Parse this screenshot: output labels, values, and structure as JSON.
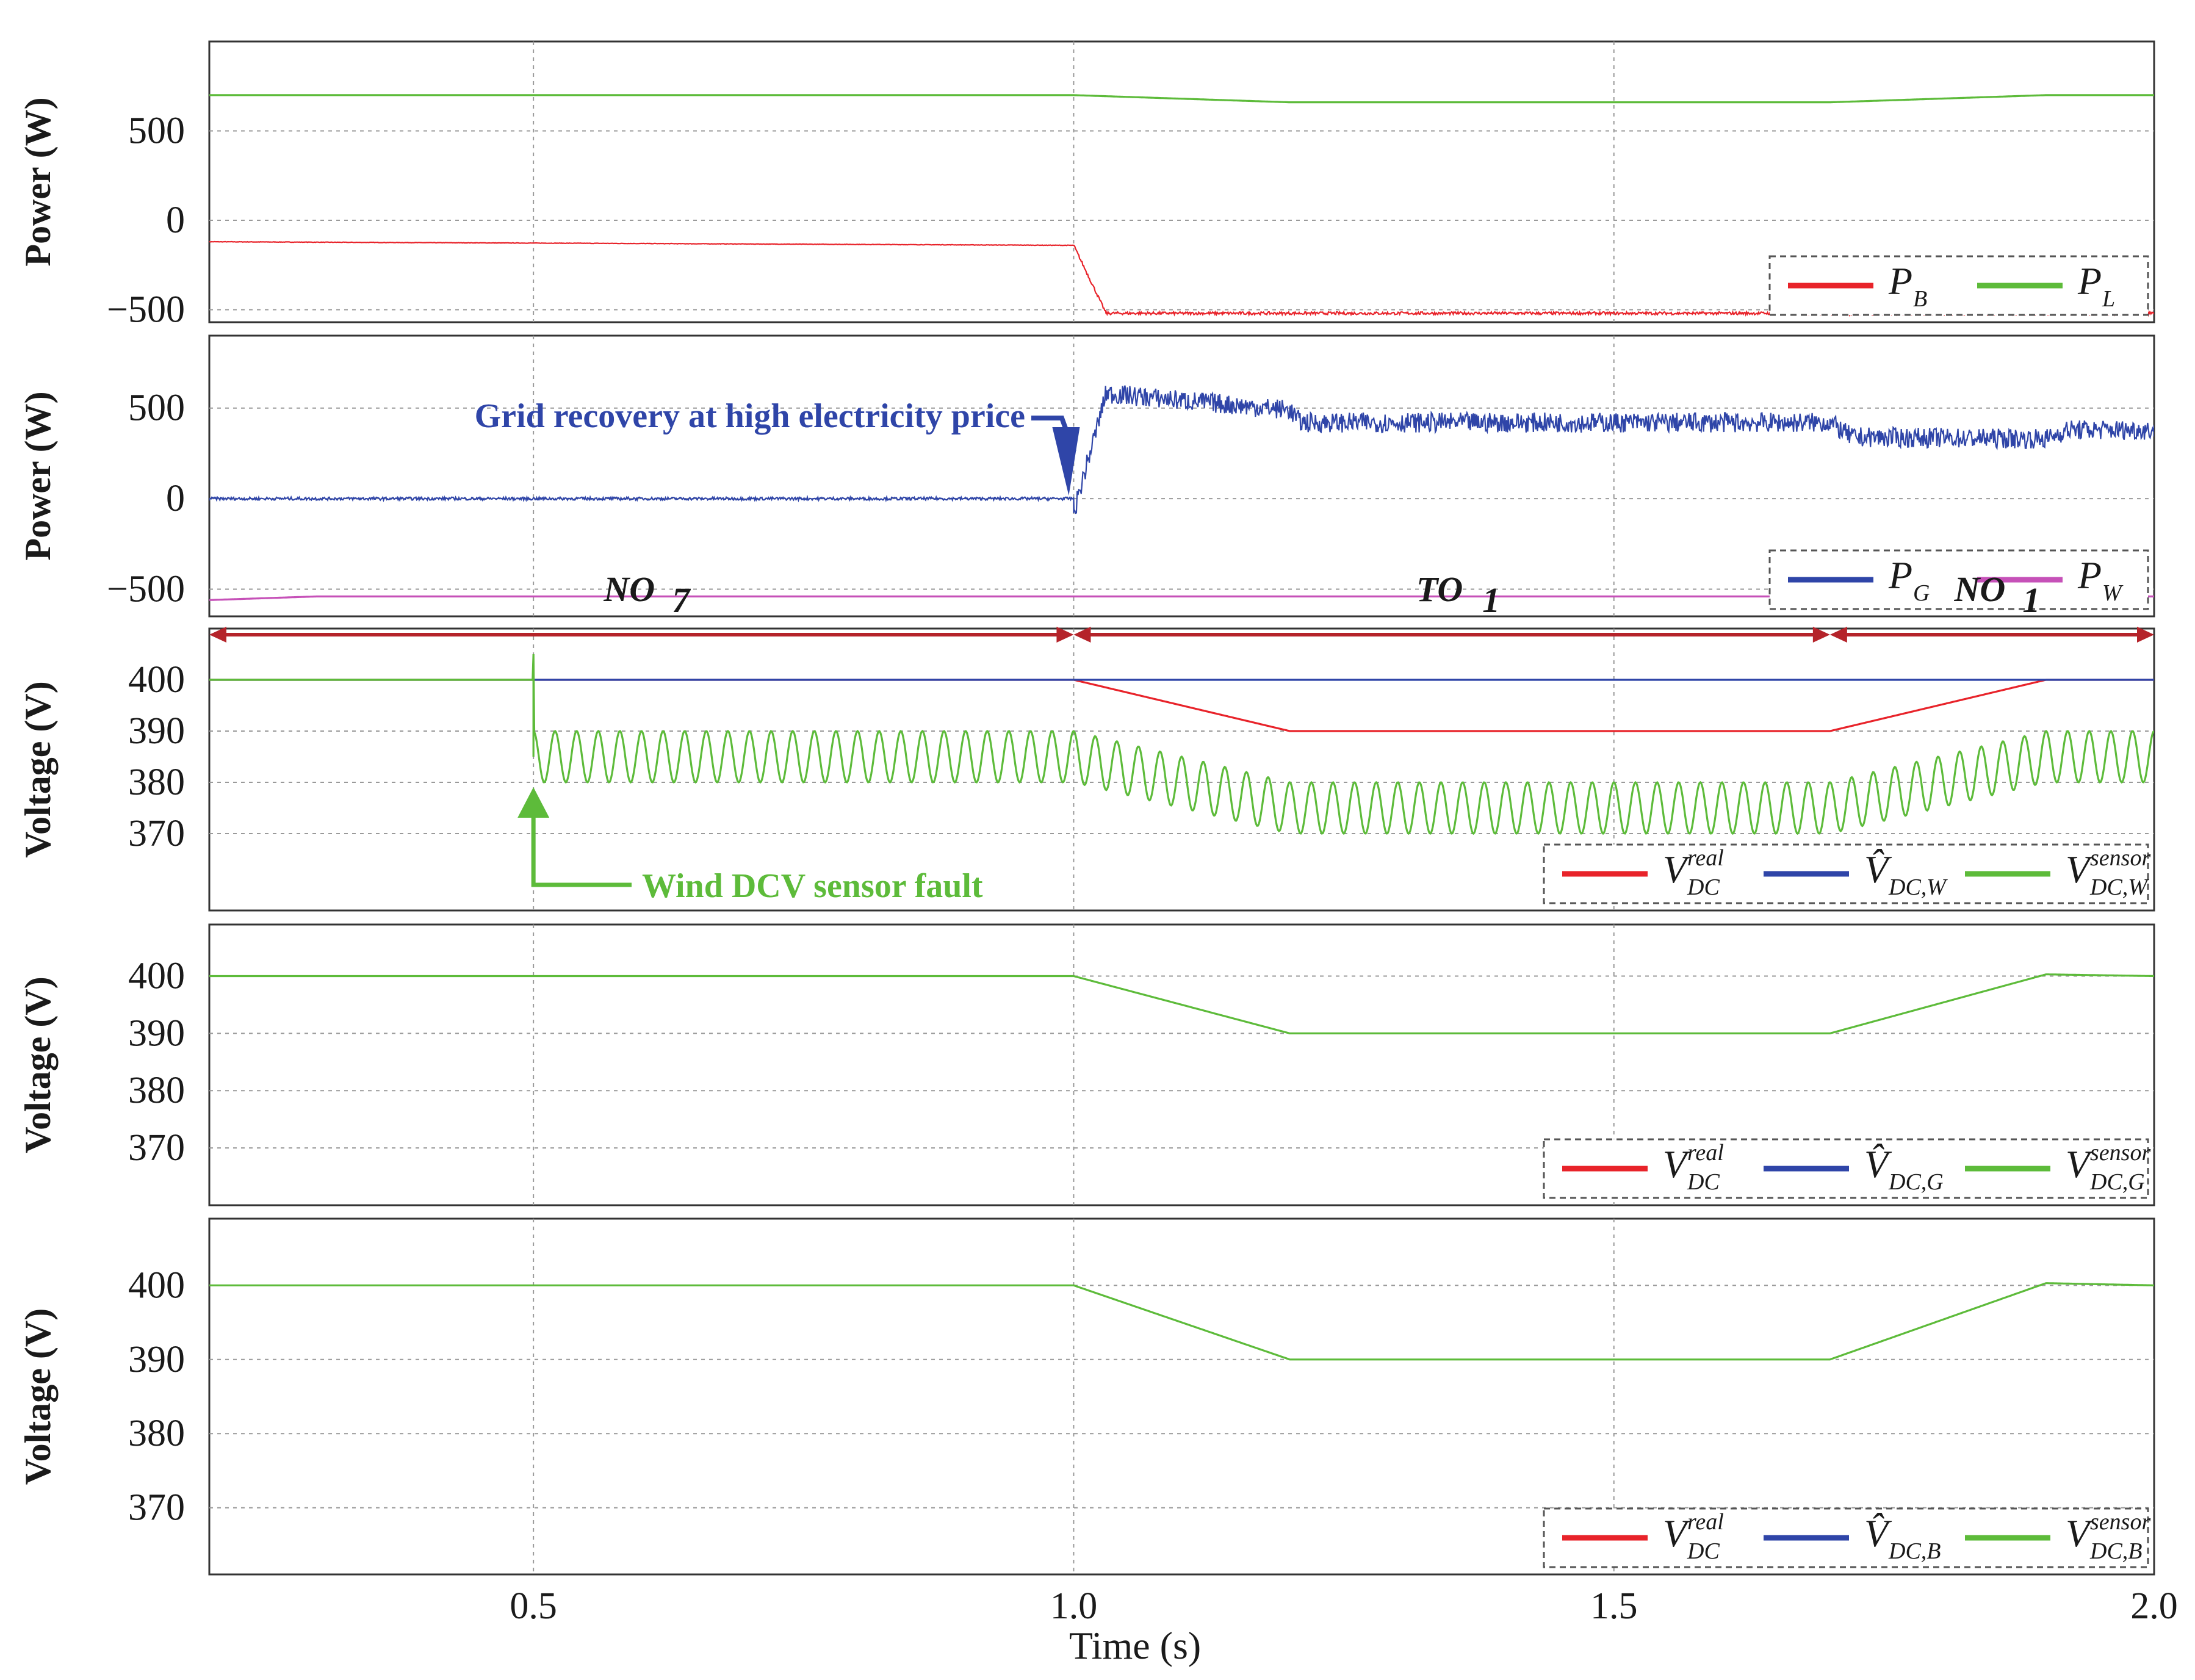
{
  "chart_data": {
    "type": "line",
    "xlabel": "Time (s)",
    "x_ticks": [
      "0.5",
      "1.0",
      "1.5",
      "2.0"
    ],
    "xlim": [
      0.2,
      2.0
    ],
    "colors": {
      "red": "#e8232a",
      "green": "#5dbb3a",
      "blue": "#2f45a8",
      "magenta": "#c651b8"
    },
    "modes": [
      {
        "label": "NO",
        "sub": "7",
        "from": 0.2,
        "to": 1.0
      },
      {
        "label": "TO",
        "sub": "1",
        "from": 1.0,
        "to": 1.7
      },
      {
        "label": "NO",
        "sub": "1",
        "from": 1.7,
        "to": 2.0
      }
    ],
    "panels": [
      {
        "ylabel": "Power (W)",
        "ylim": [
          -570,
          1000
        ],
        "y_ticks": [
          {
            "v": 500,
            "t": "500"
          },
          {
            "v": 0,
            "t": "0"
          },
          {
            "v": -500,
            "t": "−500"
          }
        ],
        "legend": [
          {
            "color": "red",
            "base": "P",
            "sub": "B"
          },
          {
            "color": "green",
            "base": "P",
            "sub": "L"
          }
        ],
        "series": [
          {
            "name": "P_B",
            "color": "red",
            "noise": 8,
            "points": [
              [
                0.2,
                -120
              ],
              [
                1.0,
                -140
              ],
              [
                1.03,
                -520
              ],
              [
                2.0,
                -520
              ]
            ]
          },
          {
            "name": "P_L",
            "color": "green",
            "noise": 0,
            "points": [
              [
                0.2,
                700
              ],
              [
                1.0,
                700
              ],
              [
                1.2,
                660
              ],
              [
                1.7,
                660
              ],
              [
                1.9,
                700
              ],
              [
                2.0,
                700
              ]
            ]
          }
        ]
      },
      {
        "ylabel": "Power (W)",
        "ylim": [
          -650,
          900
        ],
        "y_ticks": [
          {
            "v": 500,
            "t": "500"
          },
          {
            "v": 0,
            "t": "0"
          },
          {
            "v": -500,
            "t": "−500"
          }
        ],
        "legend": [
          {
            "color": "blue",
            "base": "P",
            "sub": "G"
          },
          {
            "color": "magenta",
            "base": "P",
            "sub": "W"
          }
        ],
        "series": [
          {
            "name": "P_G",
            "color": "blue",
            "noise": 55,
            "points": [
              [
                0.2,
                0
              ],
              [
                1.0,
                0
              ],
              [
                1.0,
                -80
              ],
              [
                1.03,
                580
              ],
              [
                1.2,
                490
              ],
              [
                1.21,
                420
              ],
              [
                1.7,
                420
              ],
              [
                1.72,
                340
              ],
              [
                1.9,
                330
              ],
              [
                1.92,
                380
              ],
              [
                2.0,
                380
              ]
            ]
          },
          {
            "name": "P_W",
            "color": "magenta",
            "noise": 0,
            "points": [
              [
                0.2,
                -560
              ],
              [
                0.3,
                -540
              ],
              [
                2.0,
                -540
              ]
            ]
          }
        ],
        "annotation": "Grid recovery at high electricity price"
      },
      {
        "ylabel": "Voltage (V)",
        "ylim": [
          355,
          410
        ],
        "y_ticks": [
          {
            "v": 400,
            "t": "400"
          },
          {
            "v": 390,
            "t": "390"
          },
          {
            "v": 380,
            "t": "380"
          },
          {
            "v": 370,
            "t": "370"
          }
        ],
        "legend": [
          {
            "color": "red",
            "base": "V",
            "sup": "real",
            "sub": "DC"
          },
          {
            "color": "blue",
            "base": "V̂",
            "sub": "DC,W"
          },
          {
            "color": "green",
            "base": "V",
            "sup": "sensor",
            "sub": "DC,W"
          }
        ],
        "series": [
          {
            "name": "V_DC real",
            "color": "red",
            "noise": 0,
            "points": [
              [
                0.2,
                400
              ],
              [
                1.0,
                400
              ],
              [
                1.2,
                390
              ],
              [
                1.7,
                390
              ],
              [
                1.9,
                400
              ],
              [
                2.0,
                400
              ]
            ]
          },
          {
            "name": "V_DC,W hat",
            "color": "blue",
            "noise": 0,
            "points": [
              [
                0.2,
                400
              ],
              [
                2.0,
                400
              ]
            ]
          },
          {
            "name": "V_DC,W sensor",
            "color": "green",
            "noise": 0,
            "osc": {
              "start": 0.5,
              "amp": 5,
              "period": 0.02
            },
            "points": [
              [
                0.2,
                400
              ],
              [
                0.5,
                400
              ],
              [
                0.5,
                385
              ],
              [
                1.0,
                385
              ],
              [
                1.2,
                375
              ],
              [
                1.7,
                375
              ],
              [
                1.9,
                385
              ],
              [
                2.0,
                385
              ]
            ]
          }
        ],
        "annotation": "Wind DCV sensor fault"
      },
      {
        "ylabel": "Voltage (V)",
        "ylim": [
          360,
          409
        ],
        "y_ticks": [
          {
            "v": 400,
            "t": "400"
          },
          {
            "v": 390,
            "t": "390"
          },
          {
            "v": 380,
            "t": "380"
          },
          {
            "v": 370,
            "t": "370"
          }
        ],
        "legend": [
          {
            "color": "red",
            "base": "V",
            "sup": "real",
            "sub": "DC"
          },
          {
            "color": "blue",
            "base": "V̂",
            "sub": "DC,G"
          },
          {
            "color": "green",
            "base": "V",
            "sup": "sensor",
            "sub": "DC,G"
          }
        ],
        "series": [
          {
            "name": "V_DC,G sensor",
            "color": "green",
            "noise": 0,
            "points": [
              [
                0.2,
                400
              ],
              [
                1.0,
                400
              ],
              [
                1.02,
                399
              ],
              [
                1.2,
                390
              ],
              [
                1.7,
                390
              ],
              [
                1.9,
                400.3
              ],
              [
                2.0,
                400
              ]
            ]
          }
        ]
      },
      {
        "ylabel": "Voltage (V)",
        "ylim": [
          361,
          409
        ],
        "y_ticks": [
          {
            "v": 400,
            "t": "400"
          },
          {
            "v": 390,
            "t": "390"
          },
          {
            "v": 380,
            "t": "380"
          },
          {
            "v": 370,
            "t": "370"
          }
        ],
        "legend": [
          {
            "color": "red",
            "base": "V",
            "sup": "real",
            "sub": "DC"
          },
          {
            "color": "blue",
            "base": "V̂",
            "sub": "DC,B"
          },
          {
            "color": "green",
            "base": "V",
            "sup": "sensor",
            "sub": "DC,B"
          }
        ],
        "series": [
          {
            "name": "V_DC,B sensor",
            "color": "green",
            "noise": 0,
            "points": [
              [
                0.2,
                400
              ],
              [
                1.0,
                400
              ],
              [
                1.02,
                399
              ],
              [
                1.2,
                390
              ],
              [
                1.7,
                390
              ],
              [
                1.9,
                400.3
              ],
              [
                2.0,
                400
              ]
            ]
          }
        ]
      }
    ]
  }
}
